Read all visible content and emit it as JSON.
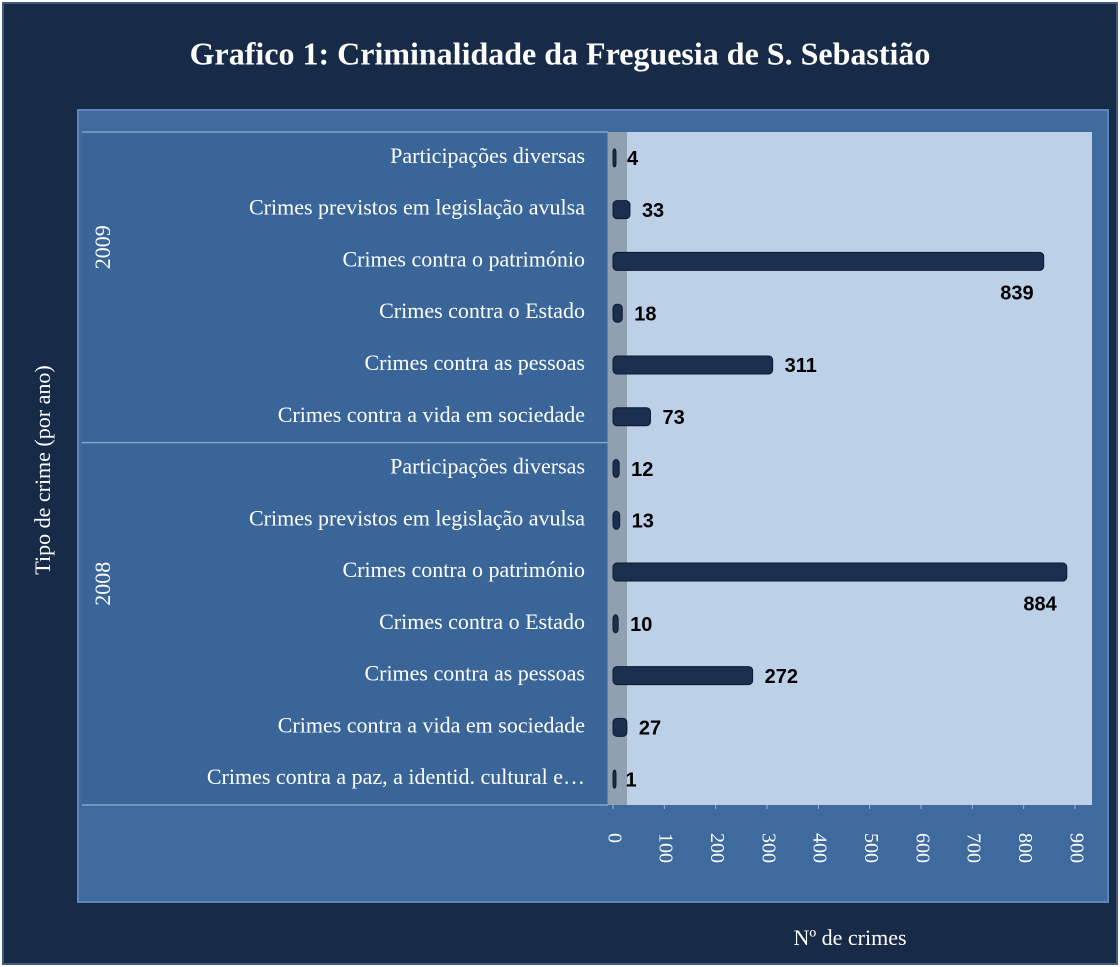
{
  "chart_data": {
    "type": "bar",
    "orientation": "horizontal",
    "title": "Grafico 1: Criminalidade da Freguesia de S. Sebastião",
    "x_label": "Nº de crimes",
    "y_label": "Tipo de crime (por ano)",
    "color": "#1b2f50",
    "grid": false,
    "xlim": [
      0,
      900
    ],
    "xticks": [
      0,
      100,
      200,
      300,
      400,
      500,
      600,
      700,
      800,
      900
    ],
    "groups": [
      {
        "name": "2009",
        "categories": [
          "Participações diversas",
          "Crimes previstos em legislação avulsa",
          "Crimes contra o património",
          "Crimes contra o Estado",
          "Crimes contra as pessoas",
          "Crimes contra a vida em sociedade"
        ],
        "values": [
          4,
          33,
          839,
          18,
          311,
          73
        ]
      },
      {
        "name": "2008",
        "categories": [
          "Participações diversas",
          "Crimes previstos em legislação avulsa",
          "Crimes contra o património",
          "Crimes contra o Estado",
          "Crimes contra as pessoas",
          "Crimes contra a vida em sociedade",
          "Crimes contra a paz, a identid. cultural e…"
        ],
        "values": [
          12,
          13,
          884,
          10,
          272,
          27,
          1
        ]
      }
    ]
  }
}
